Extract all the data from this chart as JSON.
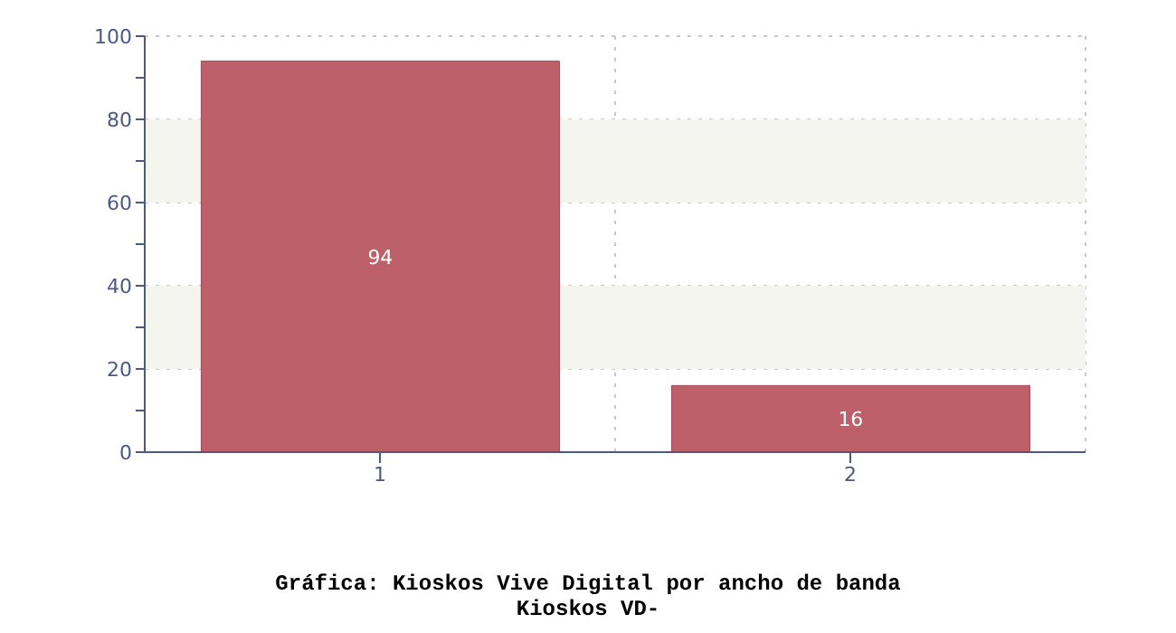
{
  "chart_data": {
    "type": "bar",
    "title": "Gráfica: Kioskos Vive Digital por ancho de banda",
    "subtitle": "Kioskos VD-",
    "categories": [
      "1",
      "2"
    ],
    "values": [
      94,
      16
    ],
    "color": "#be6069",
    "ylim": [
      0,
      100
    ],
    "yticks": [
      0,
      {
        "value": 10,
        "label": null
      },
      20,
      {
        "value": 30,
        "label": null
      },
      40,
      {
        "value": 50,
        "label": null
      },
      60,
      {
        "value": 70,
        "label": null
      },
      80,
      {
        "value": 90,
        "label": null
      },
      100
    ],
    "bands": [
      {
        "axis": "y",
        "from": 20,
        "to": 40,
        "color": "#f5f5f0"
      },
      {
        "axis": "y",
        "from": 60,
        "to": 80,
        "color": "#f5f5f0"
      }
    ],
    "grid": true,
    "data_labels": true
  }
}
